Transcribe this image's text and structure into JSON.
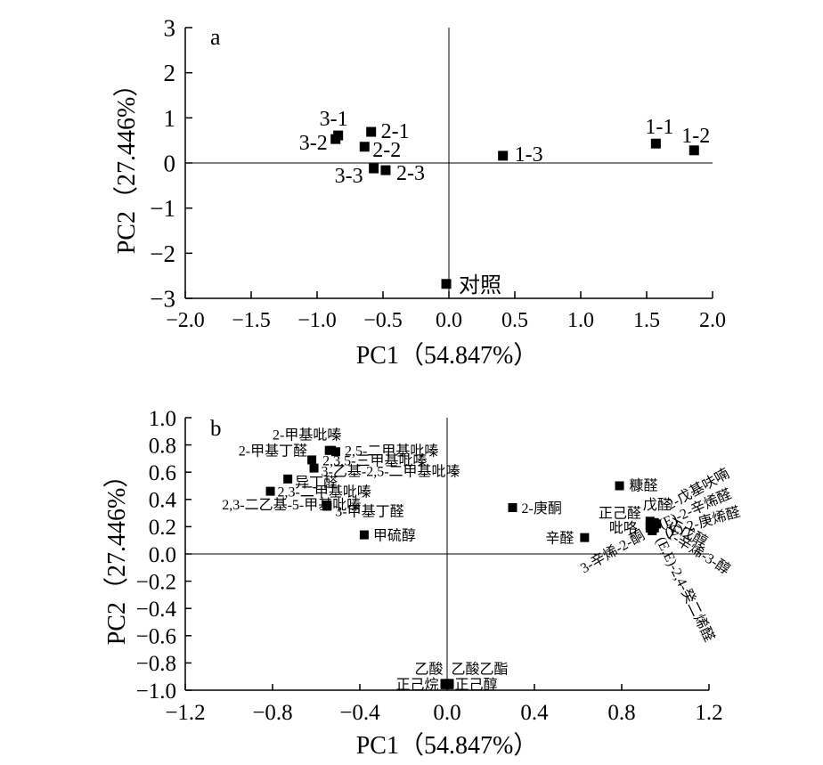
{
  "colors": {
    "marker": "#000000",
    "line": "#000000",
    "background": "#ffffff"
  },
  "chart_data": [
    {
      "type": "scatter",
      "panel": "a",
      "xlabel": "PC1（54.847%）",
      "ylabel": "PC2（27.446%）",
      "xlim": [
        -2.0,
        2.0
      ],
      "ylim": [
        -3,
        3
      ],
      "xticks": [
        "−2.0",
        "−1.5",
        "−1.0",
        "−0.5",
        "0.0",
        "0.5",
        "1.0",
        "1.5",
        "2.0"
      ],
      "yticks": [
        "3",
        "2",
        "1",
        "0",
        "−1",
        "−2",
        "−3"
      ],
      "zero_lines": true,
      "grid": false,
      "marker_shape": "square",
      "points": [
        {
          "label": "3-1",
          "x": -0.84,
          "y": 0.61
        },
        {
          "label": "3-2",
          "x": -0.86,
          "y": 0.53
        },
        {
          "label": "2-1",
          "x": -0.59,
          "y": 0.69
        },
        {
          "label": "2-2",
          "x": -0.64,
          "y": 0.36
        },
        {
          "label": "3-3",
          "x": -0.57,
          "y": -0.12
        },
        {
          "label": "2-3",
          "x": -0.48,
          "y": -0.16
        },
        {
          "label": "1-3",
          "x": 0.41,
          "y": 0.16
        },
        {
          "label": "1-1",
          "x": 1.57,
          "y": 0.43
        },
        {
          "label": "1-2",
          "x": 1.86,
          "y": 0.28
        },
        {
          "label": "对照",
          "x": -0.02,
          "y": -2.68
        }
      ]
    },
    {
      "type": "scatter",
      "panel": "b",
      "xlabel": "PC1（54.847%）",
      "ylabel": "PC2（27.446%）",
      "xlim": [
        -1.2,
        1.2
      ],
      "ylim": [
        -1.0,
        1.0
      ],
      "xticks": [
        "−1.2",
        "−0.8",
        "−0.4",
        "0.0",
        "0.4",
        "0.8",
        "1.2"
      ],
      "yticks": [
        "1.0",
        "0.8",
        "0.6",
        "0.4",
        "0.2",
        "0.0",
        "−0.2",
        "−0.4",
        "−0.6",
        "−0.8",
        "−1.0"
      ],
      "zero_lines": true,
      "grid": false,
      "marker_shape": "square",
      "points": [
        {
          "label": "2-甲基吡嗪",
          "x": -0.54,
          "y": 0.76
        },
        {
          "label": "2,5-二甲基吡嗪",
          "x": -0.51,
          "y": 0.75
        },
        {
          "label": "2,3,5-三甲基吡嗪",
          "x": -0.53,
          "y": 0.76
        },
        {
          "label": "2-甲基丁醛",
          "x": -0.62,
          "y": 0.69
        },
        {
          "label": "3-乙基-2,5-二甲基吡嗪",
          "x": -0.61,
          "y": 0.63
        },
        {
          "label": "异丁醛",
          "x": -0.73,
          "y": 0.55
        },
        {
          "label": "2,3-二甲基吡嗪",
          "x": -0.81,
          "y": 0.46
        },
        {
          "label": "2,3-二乙基-5-甲基吡嗪",
          "x": -0.55,
          "y": 0.36
        },
        {
          "label": "3-甲基丁醛",
          "x": -0.55,
          "y": 0.35
        },
        {
          "label": "甲硫醇",
          "x": -0.38,
          "y": 0.14
        },
        {
          "label": "2-庚酮",
          "x": 0.3,
          "y": 0.34
        },
        {
          "label": "糠醛",
          "x": 0.79,
          "y": 0.5
        },
        {
          "label": "辛醛",
          "x": 0.63,
          "y": 0.12
        },
        {
          "label": "正己醛",
          "x": 0.93,
          "y": 0.24
        },
        {
          "label": "戊醛",
          "x": 0.95,
          "y": 0.23
        },
        {
          "label": "2-戊基呋喃",
          "x": 0.96,
          "y": 0.22
        },
        {
          "label": "(E)-2-辛烯醛",
          "x": 0.95,
          "y": 0.21
        },
        {
          "label": "(E)-2-庚烯醛",
          "x": 0.94,
          "y": 0.2
        },
        {
          "label": "吡咯",
          "x": 0.93,
          "y": 0.21
        },
        {
          "label": "3-辛烯-2-酮",
          "x": 0.93,
          "y": 0.19
        },
        {
          "label": "1-辛烯-3-醇",
          "x": 0.95,
          "y": 0.19
        },
        {
          "label": "正戊醇",
          "x": 0.94,
          "y": 0.18
        },
        {
          "label": "(E,E)-2,4-癸二烯醛",
          "x": 0.94,
          "y": 0.17
        },
        {
          "label": "乙酸",
          "x": -0.01,
          "y": -0.95
        },
        {
          "label": "乙酸乙酯",
          "x": 0.01,
          "y": -0.95
        },
        {
          "label": "正己烷",
          "x": -0.01,
          "y": -0.96
        },
        {
          "label": "正己醇",
          "x": 0.01,
          "y": -0.96
        }
      ]
    }
  ]
}
